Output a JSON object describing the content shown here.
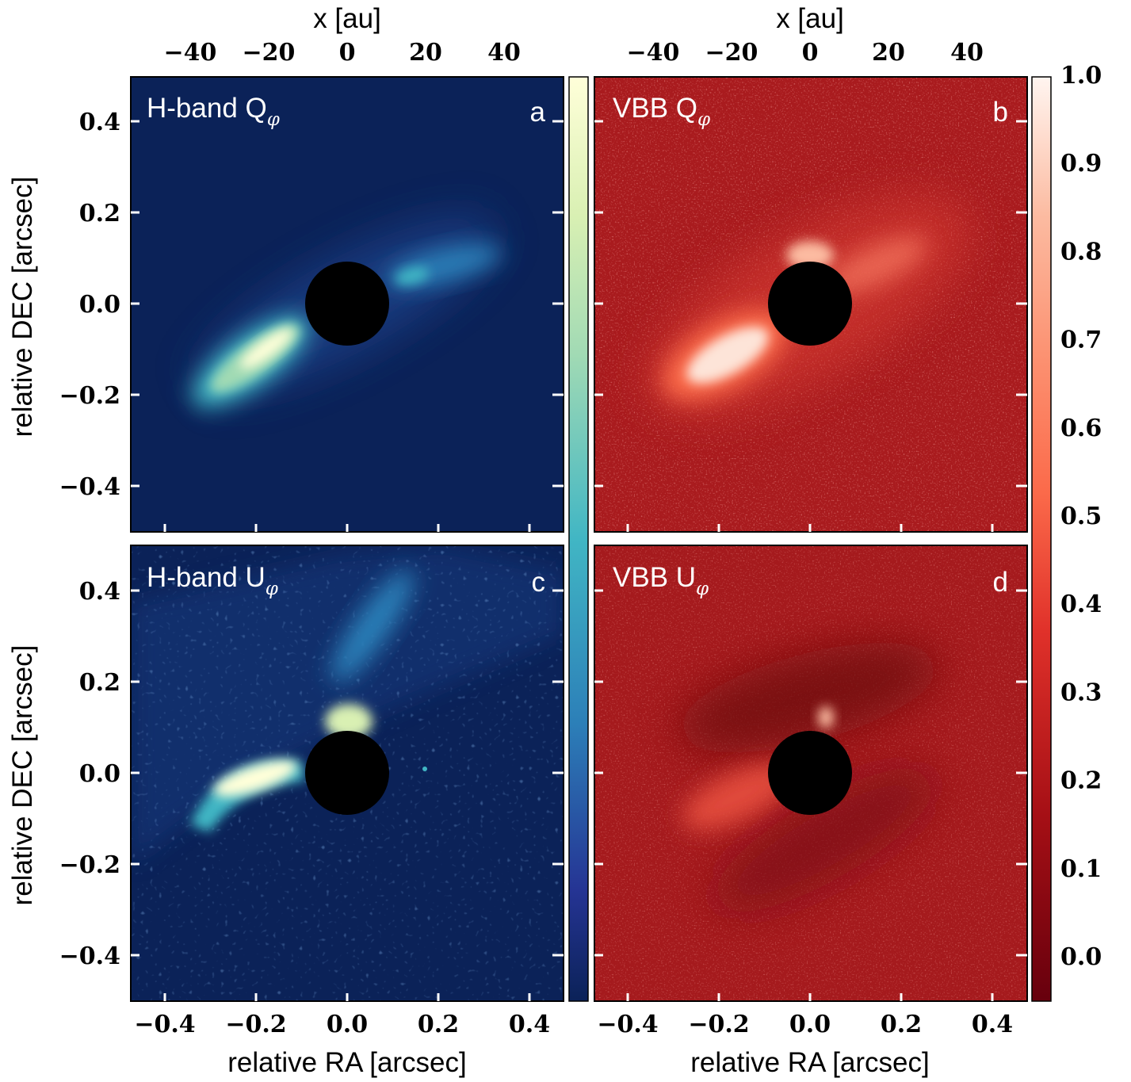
{
  "figure": {
    "panels": [
      {
        "id": "a",
        "title": "H-band Q",
        "subscript": "φ",
        "letter": "a",
        "colormap": "ylgnbu"
      },
      {
        "id": "b",
        "title": "VBB Q",
        "subscript": "φ",
        "letter": "b",
        "colormap": "reds"
      },
      {
        "id": "c",
        "title": "H-band U",
        "subscript": "φ",
        "letter": "c",
        "colormap": "ylgnbu"
      },
      {
        "id": "d",
        "title": "VBB U",
        "subscript": "φ",
        "letter": "d",
        "colormap": "reds"
      }
    ],
    "axes": {
      "xlabel": "relative RA [arcsec]",
      "ylabel": "relative DEC [arcsec]",
      "top_xlabel": "x [au]",
      "x_ticks": [
        "−0.4",
        "−0.2",
        "0.0",
        "0.2",
        "0.4"
      ],
      "y_ticks": [
        "0.4",
        "0.2",
        "0.0",
        "−0.2",
        "−0.4"
      ],
      "top_ticks": [
        "−40",
        "−20",
        "0",
        "20",
        "40"
      ]
    },
    "colorbar": {
      "ticks": [
        "1.0",
        "0.9",
        "0.8",
        "0.7",
        "0.6",
        "0.5",
        "0.4",
        "0.3",
        "0.2",
        "0.1",
        "0.0"
      ],
      "blue_colormap": "ylgnbu",
      "red_colormap": "reds"
    },
    "colors": {
      "blue_bg": "#0b2258",
      "red_bg": "#a91b1e",
      "mask": "#000000"
    }
  },
  "chart_data": {
    "type": "heatmap",
    "xlabel": "relative RA [arcsec]",
    "ylabel": "relative DEC [arcsec]",
    "top_xlabel": "x [au]",
    "xlim": [
      -0.48,
      0.48
    ],
    "ylim": [
      -0.5,
      0.5
    ],
    "top_axis_ticks_au": [
      -40,
      -20,
      0,
      20,
      40
    ],
    "color_scale": [
      0.0,
      1.0
    ],
    "panels": [
      "H-band Qφ",
      "VBB Qφ",
      "H-band Uφ",
      "VBB Uφ"
    ],
    "coronagraph_mask_radius_arcsec": 0.09
  }
}
